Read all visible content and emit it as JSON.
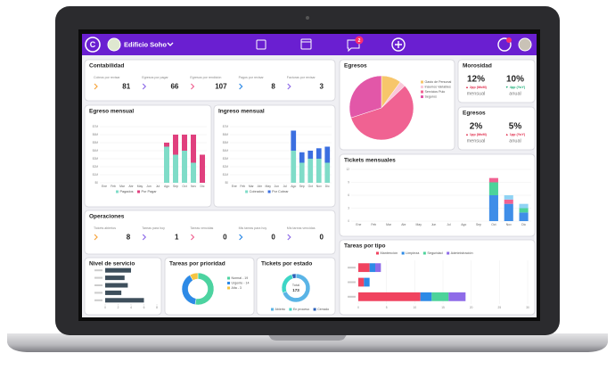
{
  "header": {
    "logo": "C",
    "building": "Edificio Soho",
    "messages_badge": "2"
  },
  "contabilidad": {
    "title": "Contabilidad",
    "items": [
      {
        "label": "Cobros por revisar",
        "value": 81
      },
      {
        "label": "Egresos por pagar",
        "value": 66
      },
      {
        "label": "Egresos por rendición",
        "value": 107
      },
      {
        "label": "Pagos por revisar",
        "value": 8
      },
      {
        "label": "Facturas por revisar",
        "value": 3
      }
    ]
  },
  "operaciones": {
    "title": "Operaciones",
    "items": [
      {
        "label": "Tickets abiertos",
        "value": 8
      },
      {
        "label": "Tareas para hoy",
        "value": 1
      },
      {
        "label": "Tareas vencidas",
        "value": 0
      },
      {
        "label": "Mis tareas para hoy",
        "value": 0
      },
      {
        "label": "Mis tareas vencidas",
        "value": 0
      }
    ]
  },
  "morosidad": {
    "title": "Morosidad",
    "monthly": {
      "value": "12%",
      "change": "▲ 2pp (MoM)",
      "period": "mensual"
    },
    "annual": {
      "value": "10%",
      "change": "▼ 4pp (YoY)",
      "period": "anual"
    }
  },
  "egresos_kpi": {
    "title": "Egresos",
    "monthly": {
      "value": "2%",
      "change": "▲ 1pp (MoM)",
      "period": "mensual"
    },
    "annual": {
      "value": "5%",
      "change": "▲ 1pp (YoY)",
      "period": "anual"
    }
  },
  "chart_data": [
    {
      "type": "pie",
      "title": "Egresos",
      "categories": [
        "Gasto de Personal",
        "Insumos Variables",
        "Servicios Pulo",
        "Seguros"
      ],
      "values": [
        10,
        3,
        57,
        30
      ],
      "colors": [
        "#f7c66b",
        "#f9c9d9",
        "#f06292",
        "#e257a8"
      ]
    },
    {
      "type": "bar",
      "title": "Egreso mensual",
      "categories": [
        "Ene",
        "Feb",
        "Mar",
        "Abr",
        "May",
        "Jun",
        "Jul",
        "Ago",
        "Sep",
        "Oct",
        "Nov",
        "Dic"
      ],
      "series": [
        {
          "name": "Pagados",
          "color": "#7fdcc8",
          "values": [
            null,
            null,
            null,
            null,
            null,
            null,
            null,
            4.5,
            3.5,
            4,
            2.5,
            null
          ]
        },
        {
          "name": "Por Pagar",
          "color": "#e0407e",
          "values": [
            null,
            null,
            null,
            null,
            null,
            null,
            null,
            0.5,
            2.5,
            2,
            3.5,
            3.5
          ]
        }
      ],
      "ylim": [
        0,
        7
      ],
      "yticks": [
        {
          "value": 0,
          "label": "$0"
        },
        {
          "value": 1,
          "label": "$1M"
        },
        {
          "value": 2,
          "label": "$2M"
        },
        {
          "value": 3,
          "label": "$3M"
        },
        {
          "value": 4,
          "label": "$4M"
        },
        {
          "value": 5,
          "label": "$5M"
        },
        {
          "value": 6,
          "label": "$6M"
        },
        {
          "value": 7,
          "label": "$7M"
        }
      ],
      "grid": true
    },
    {
      "type": "bar",
      "title": "Ingreso mensual",
      "categories": [
        "Ene",
        "Feb",
        "Mar",
        "Abr",
        "May",
        "Jun",
        "Jul",
        "Ago",
        "Sep",
        "Oct",
        "Nov",
        "Dic"
      ],
      "series": [
        {
          "name": "Cobrados",
          "color": "#7fdcc8",
          "values": [
            null,
            null,
            null,
            null,
            null,
            null,
            null,
            4,
            2.5,
            3,
            3,
            2.5
          ]
        },
        {
          "name": "Por Cobrar",
          "color": "#3b6fe0",
          "values": [
            null,
            null,
            null,
            null,
            null,
            null,
            null,
            2.5,
            1.3,
            1,
            1.3,
            2
          ]
        }
      ],
      "ylim": [
        0,
        7
      ],
      "yticks": [
        {
          "value": 0,
          "label": "$0"
        },
        {
          "value": 1,
          "label": "$1M"
        },
        {
          "value": 2,
          "label": "$2M"
        },
        {
          "value": 3,
          "label": "$3M"
        },
        {
          "value": 4,
          "label": "$4M"
        },
        {
          "value": 5,
          "label": "$5M"
        },
        {
          "value": 6,
          "label": "$6M"
        },
        {
          "value": 7,
          "label": "$7M"
        }
      ],
      "grid": true
    },
    {
      "type": "bar",
      "title": "Tickets mensuales",
      "categories": [
        "Ene",
        "Feb",
        "Mar",
        "Abr",
        "May",
        "Jun",
        "Jul",
        "Ago",
        "Sep",
        "Oct",
        "Nov",
        "Dic"
      ],
      "series": [
        {
          "color": "#3f8ee8",
          "values": [
            null,
            null,
            null,
            null,
            null,
            null,
            null,
            null,
            null,
            6,
            4,
            2
          ]
        },
        {
          "color": "#4cd39a",
          "values": [
            null,
            null,
            null,
            null,
            null,
            null,
            null,
            null,
            null,
            3,
            null,
            1
          ]
        },
        {
          "color": "#f06292",
          "values": [
            null,
            null,
            null,
            null,
            null,
            null,
            null,
            null,
            null,
            1,
            1,
            null
          ]
        },
        {
          "color": "#8fd3f4",
          "values": [
            null,
            null,
            null,
            null,
            null,
            null,
            null,
            null,
            null,
            null,
            1,
            1
          ]
        }
      ],
      "ylim": [
        0,
        12
      ],
      "yticks": [
        0,
        3,
        6,
        9,
        12
      ],
      "grid": true
    },
    {
      "type": "bar",
      "horizontal": true,
      "title": "Nivel de servicio",
      "categories": [
        null,
        null,
        null,
        null,
        null
      ],
      "values": [
        4,
        3,
        3.5,
        2.5,
        6
      ],
      "color": "#3e4f5c",
      "xlim": [
        0,
        8
      ],
      "xticks": [
        0,
        2,
        4,
        6,
        8
      ],
      "grid": false
    },
    {
      "type": "donut",
      "title": "Tareas por prioridad",
      "categories": [
        "Normal - 19",
        "Urgente - 14",
        "Alta - 3"
      ],
      "values": [
        19,
        14,
        3
      ],
      "colors": [
        "#4cd3a0",
        "#2d8ae6",
        "#f5c542"
      ]
    },
    {
      "type": "donut",
      "title": "Tickets por estado",
      "categories": [
        "Abierto",
        "En proceso",
        "Cerrado"
      ],
      "values": [
        120,
        45,
        8
      ],
      "colors": [
        "#5ab4e6",
        "#3dd6c6",
        "#2a5fb8"
      ],
      "center_label": "Total",
      "total": 173
    },
    {
      "type": "bar",
      "horizontal": true,
      "title": "Tareas por tipo",
      "categories": [
        null,
        null,
        null
      ],
      "series": [
        {
          "name": "Mantención",
          "color": "#f0435f",
          "values": [
            2,
            1,
            11
          ]
        },
        {
          "name": "Limpieza",
          "color": "#2d8ae6",
          "values": [
            1,
            1,
            2
          ]
        },
        {
          "name": "Seguridad",
          "color": "#4cd39a",
          "values": [
            null,
            null,
            3
          ]
        },
        {
          "name": "Administración",
          "color": "#8e6be8",
          "values": [
            1,
            null,
            3
          ]
        }
      ],
      "xlim": [
        0,
        30
      ],
      "xticks": [
        0,
        5,
        10,
        15,
        20,
        25,
        30
      ],
      "grid": true
    }
  ]
}
